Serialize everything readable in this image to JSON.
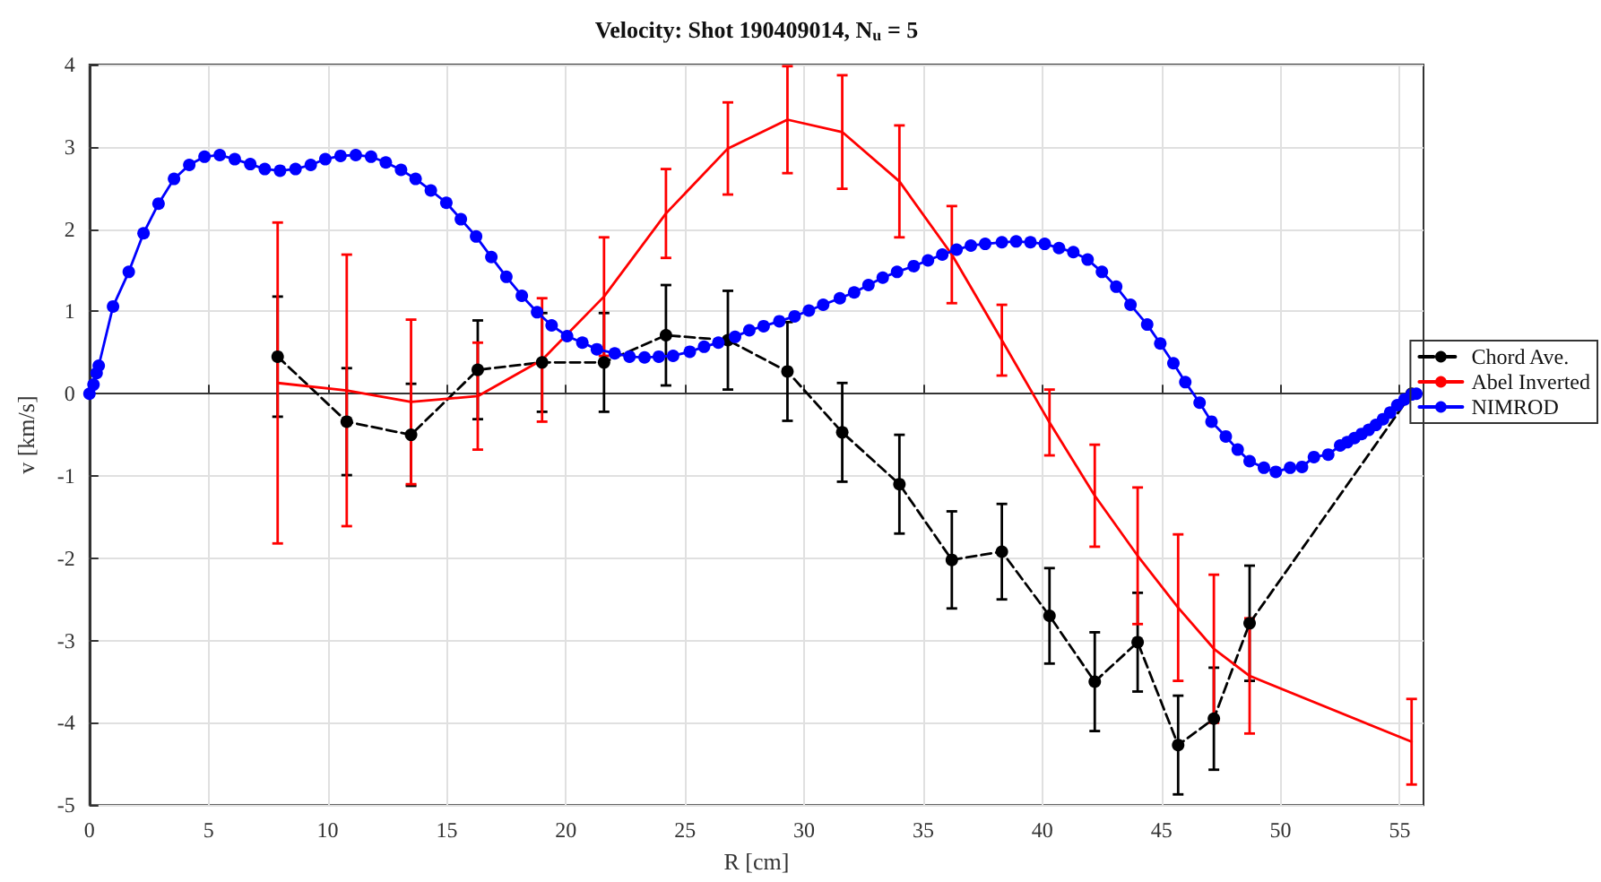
{
  "chart_data": {
    "type": "line",
    "title": "Velocity: Shot 190409014, N$_{u}$ = 5",
    "xlabel": "R [cm]",
    "ylabel": "v [km/s]",
    "xlim": [
      0,
      56
    ],
    "xticks": [
      0,
      5,
      10,
      15,
      20,
      25,
      30,
      35,
      40,
      45,
      50,
      55
    ],
    "ylim": [
      -5,
      4
    ],
    "yticks": [
      -5,
      -4,
      -3,
      -2,
      -1,
      0,
      1,
      2,
      3,
      4
    ],
    "grid": true,
    "legend": "right",
    "series": [
      {
        "name": "Chord Ave.",
        "color": "#000000",
        "marker": "circle",
        "line_style": "dashed",
        "x": [
          7.9,
          10.8,
          13.5,
          16.3,
          19.0,
          21.6,
          24.2,
          26.8,
          29.3,
          31.6,
          34.0,
          36.2,
          38.3,
          40.3,
          42.2,
          44.0,
          45.7,
          47.2,
          48.7,
          55.5
        ],
        "values": [
          0.45,
          -0.34,
          -0.5,
          0.29,
          0.38,
          0.38,
          0.71,
          0.65,
          0.27,
          -0.47,
          -1.1,
          -2.02,
          -1.92,
          -2.7,
          -3.5,
          -3.02,
          -4.27,
          -3.95,
          -2.79,
          0
        ],
        "errors": [
          0.73,
          0.65,
          0.62,
          0.6,
          0.6,
          0.6,
          0.61,
          0.6,
          0.6,
          0.6,
          0.6,
          0.59,
          0.58,
          0.58,
          0.6,
          0.6,
          0.6,
          0.62,
          0.7,
          null
        ]
      },
      {
        "name": "Abel Inverted",
        "color": "#ff0000",
        "marker": "none",
        "line_style": "solid",
        "x": [
          7.9,
          10.8,
          13.5,
          16.3,
          19.0,
          21.6,
          24.2,
          26.8,
          29.3,
          31.6,
          34.0,
          36.2,
          38.3,
          40.3,
          42.2,
          44.0,
          45.7,
          47.2,
          48.7,
          55.5
        ],
        "values": [
          0.13,
          0.04,
          -0.1,
          -0.03,
          0.41,
          1.18,
          2.19,
          2.98,
          3.33,
          3.18,
          2.58,
          1.69,
          0.65,
          -0.35,
          -1.24,
          -1.97,
          -2.6,
          -3.1,
          -3.43,
          -4.23
        ],
        "errors": [
          1.95,
          1.65,
          1.0,
          0.65,
          0.75,
          0.72,
          0.54,
          0.56,
          0.65,
          0.69,
          0.68,
          0.59,
          0.43,
          0.4,
          0.62,
          0.83,
          0.89,
          0.9,
          0.7,
          0.52
        ]
      },
      {
        "name": "NIMROD",
        "color": "#0000ff",
        "marker": "circle",
        "line_style": "solid",
        "x": [
          0,
          0.17,
          0.3,
          0.39,
          0.99,
          1.65,
          2.27,
          2.9,
          3.55,
          4.19,
          4.83,
          5.47,
          6.1,
          6.75,
          7.36,
          8.0,
          8.65,
          9.29,
          9.9,
          10.54,
          11.18,
          11.82,
          12.44,
          13.08,
          13.69,
          14.33,
          14.98,
          15.59,
          16.23,
          16.87,
          17.5,
          18.15,
          18.79,
          19.4,
          20.05,
          20.69,
          21.3,
          22.05,
          22.67,
          23.3,
          23.9,
          24.5,
          25.2,
          25.8,
          26.4,
          27.1,
          27.7,
          28.3,
          28.96,
          29.6,
          30.2,
          30.8,
          31.5,
          32.1,
          32.7,
          33.3,
          33.9,
          34.6,
          35.2,
          35.8,
          36.4,
          37.0,
          37.6,
          38.3,
          38.9,
          39.5,
          40.1,
          40.7,
          41.3,
          41.9,
          42.5,
          43.1,
          43.7,
          44.4,
          44.95,
          45.5,
          46.0,
          46.6,
          47.1,
          47.7,
          48.2,
          48.7,
          49.3,
          49.8,
          50.4,
          50.9,
          51.4,
          52.0,
          52.5,
          52.8,
          53.1,
          53.4,
          53.7,
          54.0,
          54.3,
          54.6,
          54.9,
          55.2,
          55.5,
          55.7
        ],
        "values": [
          0,
          0.11,
          0.25,
          0.34,
          1.06,
          1.48,
          1.95,
          2.31,
          2.61,
          2.78,
          2.88,
          2.9,
          2.85,
          2.79,
          2.73,
          2.71,
          2.73,
          2.78,
          2.85,
          2.89,
          2.9,
          2.88,
          2.81,
          2.72,
          2.61,
          2.47,
          2.32,
          2.12,
          1.91,
          1.66,
          1.42,
          1.19,
          0.99,
          0.83,
          0.7,
          0.62,
          0.54,
          0.49,
          0.45,
          0.44,
          0.45,
          0.46,
          0.51,
          0.57,
          0.62,
          0.69,
          0.77,
          0.82,
          0.88,
          0.94,
          1.01,
          1.08,
          1.16,
          1.23,
          1.32,
          1.41,
          1.48,
          1.55,
          1.62,
          1.69,
          1.75,
          1.8,
          1.82,
          1.84,
          1.85,
          1.84,
          1.82,
          1.77,
          1.72,
          1.63,
          1.48,
          1.3,
          1.08,
          0.84,
          0.61,
          0.37,
          0.14,
          -0.11,
          -0.34,
          -0.52,
          -0.68,
          -0.82,
          -0.9,
          -0.95,
          -0.9,
          -0.89,
          -0.77,
          -0.74,
          -0.63,
          -0.59,
          -0.54,
          -0.49,
          -0.44,
          -0.38,
          -0.31,
          -0.23,
          -0.14,
          -0.07,
          -0.01,
          0
        ]
      }
    ]
  }
}
